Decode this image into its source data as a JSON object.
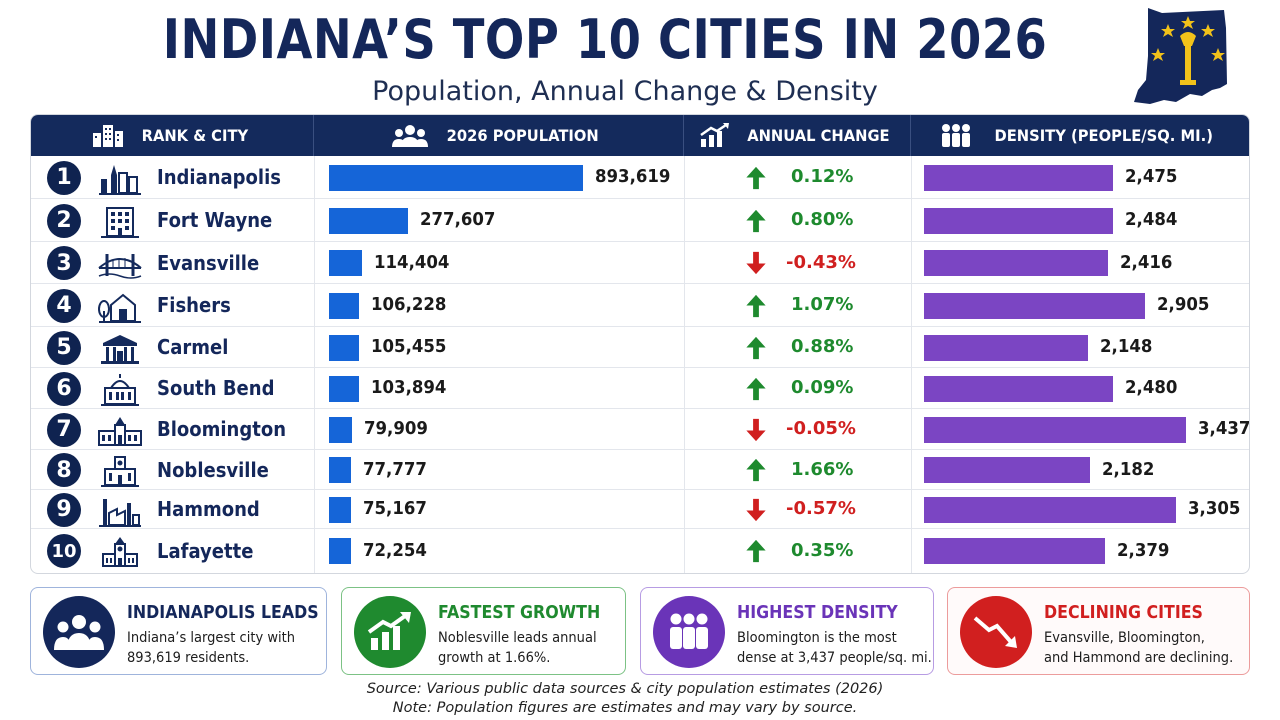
{
  "header": {
    "title": "INDIANA’S TOP 10 CITIES IN 2026",
    "subtitle": "Population, Annual Change & Density"
  },
  "columns": {
    "rank_city": "RANK & CITY",
    "population": "2026 POPULATION",
    "change": "ANNUAL CHANGE",
    "density": "DENSITY (PEOPLE/SQ. MI.)"
  },
  "colors": {
    "navy": "#142a5c",
    "population_bar": "#1565d8",
    "density_bar": "#7b45c3",
    "up": "#1e8a2e",
    "down": "#d01f1f"
  },
  "chart_data": {
    "type": "table",
    "title": "INDIANA’S TOP 10 CITIES IN 2026",
    "subtitle": "Population, Annual Change & Density",
    "rows": [
      {
        "rank": "1",
        "city": "Indianapolis",
        "icon": "skyline-icon",
        "population": 893619,
        "population_label": "893,619",
        "change": 0.12,
        "change_label": "0.12%",
        "direction": "up",
        "density": 2475,
        "density_label": "2,475"
      },
      {
        "rank": "2",
        "city": "Fort Wayne",
        "icon": "office-building-icon",
        "population": 277607,
        "population_label": "277,607",
        "change": 0.8,
        "change_label": "0.80%",
        "direction": "up",
        "density": 2484,
        "density_label": "2,484"
      },
      {
        "rank": "3",
        "city": "Evansville",
        "icon": "bridge-icon",
        "population": 114404,
        "population_label": "114,404",
        "change": -0.43,
        "change_label": "-0.43%",
        "direction": "down",
        "density": 2416,
        "density_label": "2,416"
      },
      {
        "rank": "4",
        "city": "Fishers",
        "icon": "house-tree-icon",
        "population": 106228,
        "population_label": "106,228",
        "change": 1.07,
        "change_label": "1.07%",
        "direction": "up",
        "density": 2905,
        "density_label": "2,905"
      },
      {
        "rank": "5",
        "city": "Carmel",
        "icon": "civic-building-icon",
        "population": 105455,
        "population_label": "105,455",
        "change": 0.88,
        "change_label": "0.88%",
        "direction": "up",
        "density": 2148,
        "density_label": "2,148"
      },
      {
        "rank": "6",
        "city": "South Bend",
        "icon": "dome-building-icon",
        "population": 103894,
        "population_label": "103,894",
        "change": 0.09,
        "change_label": "0.09%",
        "direction": "up",
        "density": 2480,
        "density_label": "2,480"
      },
      {
        "rank": "7",
        "city": "Bloomington",
        "icon": "university-icon",
        "population": 79909,
        "population_label": "79,909",
        "change": -0.05,
        "change_label": "-0.05%",
        "direction": "down",
        "density": 3437,
        "density_label": "3,437"
      },
      {
        "rank": "8",
        "city": "Noblesville",
        "icon": "courthouse-icon",
        "population": 77777,
        "population_label": "77,777",
        "change": 1.66,
        "change_label": "1.66%",
        "direction": "up",
        "density": 2182,
        "density_label": "2,182"
      },
      {
        "rank": "9",
        "city": "Hammond",
        "icon": "factory-icon",
        "population": 75167,
        "population_label": "75,167",
        "change": -0.57,
        "change_label": "-0.57%",
        "direction": "down",
        "density": 3305,
        "density_label": "3,305"
      },
      {
        "rank": "10",
        "city": "Lafayette",
        "icon": "clock-tower-icon",
        "population": 72254,
        "population_label": "72,254",
        "change": 0.35,
        "change_label": "0.35%",
        "direction": "up",
        "density": 2379,
        "density_label": "2,379"
      }
    ]
  },
  "cards": [
    {
      "id": "indianapolis-leads",
      "title": "INDIANAPOLIS LEADS",
      "line1": "Indiana’s largest city with",
      "line2": "893,619 residents.",
      "color": "#14275a",
      "border": "#9fb4dc",
      "bg": "#ffffff",
      "icon": "people-group-icon"
    },
    {
      "id": "fastest-growth",
      "title": "FASTEST GROWTH",
      "line1": "Noblesville leads annual",
      "line2": "growth at 1.66%.",
      "color": "#1f8a2f",
      "border": "#7cc285",
      "bg": "#ffffff",
      "icon": "growth-chart-icon"
    },
    {
      "id": "highest-density",
      "title": "HIGHEST DENSITY",
      "line1": "Bloomington is the most",
      "line2": "dense at 3,437 people/sq. mi.",
      "color": "#6a34b8",
      "border": "#b79ce3",
      "bg": "#ffffff",
      "icon": "crowd-icon"
    },
    {
      "id": "declining-cities",
      "title": "DECLINING CITIES",
      "line1": "Evansville, Bloomington,",
      "line2": "and Hammond are declining.",
      "color": "#d11f1f",
      "border": "#ec9c9c",
      "bg": "#fffafa",
      "icon": "decline-chart-icon"
    }
  ],
  "footer": {
    "source": "Source: Various public data sources & city population estimates (2026)",
    "note": "Note: Population figures are estimates and may vary by source."
  }
}
